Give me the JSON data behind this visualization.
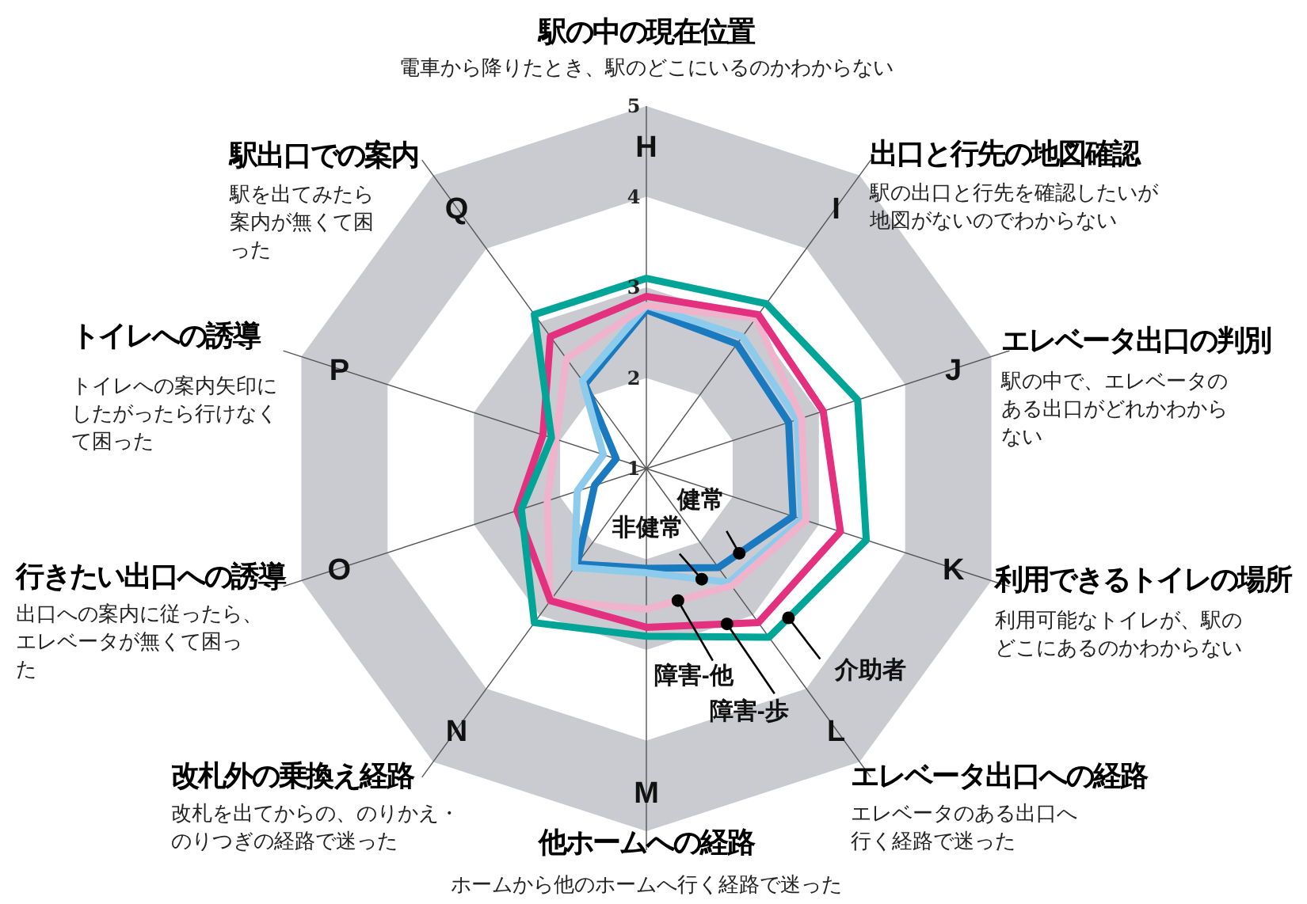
{
  "chart_data": {
    "type": "radar",
    "categories": [
      "H",
      "I",
      "J",
      "K",
      "L",
      "M",
      "N",
      "O",
      "P",
      "Q"
    ],
    "annotations": [
      "駅の中の現在位置",
      "電車から降りたとき、駅のどこにいるのかわからない",
      "出口と行先の地図確認",
      "駅の出口と行先を確認したいが地図がないのでわからない",
      "エレベータ出口の判別",
      "駅の中で、エレベータのある出口がどれかわからない",
      "利用できるトイレの場所",
      "利用可能なトイレが、駅のどこにあるのかわからない",
      "エレベータ出口への経路",
      "エレベータのある出口へ行く経路で迷った",
      "他ホームへの経路",
      "ホームから他のホームへ行く経路で迷った",
      "改札外の乗換え経路",
      "改札を出てからの、のりかえ・のりつぎの経路で迷った",
      "行きたい出口への誘導",
      "出口への案内に従ったら、エレベータが無くて困った",
      "トイレへの誘導",
      "トイレへの案内矢印にしたがったら行けなくて困った",
      "駅出口での案内",
      "駅を出てみたら案内が無くて困った"
    ],
    "series": [
      {
        "name": "健常",
        "color": "#1a7abf",
        "values": [
          2.75,
          2.7,
          2.65,
          2.7,
          2.35,
          2.1,
          2.3,
          1.6,
          1.35,
          2.15
        ]
      },
      {
        "name": "非健常",
        "color": "#8ccbec",
        "values": [
          2.8,
          2.8,
          2.75,
          2.8,
          2.55,
          2.15,
          2.35,
          1.8,
          1.5,
          2.2
        ]
      },
      {
        "name": "障害-他",
        "color": "#efb3cb",
        "values": [
          2.8,
          3.05,
          2.8,
          2.85,
          2.6,
          2.55,
          2.8,
          2.15,
          2.05,
          2.5
        ]
      },
      {
        "name": "障害-歩",
        "color": "#e3307f",
        "values": [
          2.9,
          3.1,
          3.05,
          3.25,
          3.1,
          2.75,
          2.8,
          2.5,
          2.2,
          2.8
        ]
      },
      {
        "name": "介助者",
        "color": "#00a597",
        "values": [
          3.1,
          3.25,
          3.45,
          3.55,
          3.3,
          2.85,
          3.1,
          2.45,
          2.1,
          3.1
        ]
      }
    ],
    "ylim": [
      1,
      5
    ],
    "yticks": [
      1,
      2,
      3,
      4,
      5
    ],
    "grid": true
  }
}
